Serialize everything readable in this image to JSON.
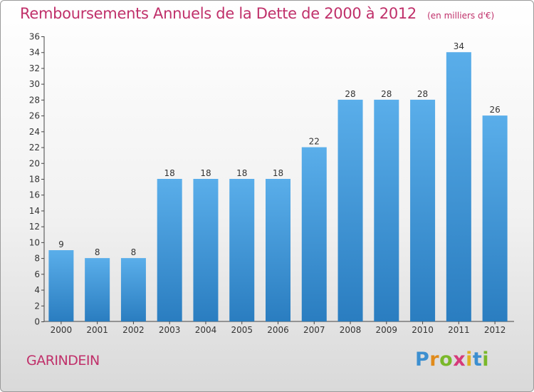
{
  "chart_data": {
    "type": "bar",
    "title": "Remboursements Annuels de la Dette de 2000 à 2012",
    "unit_label": "(en milliers d'€)",
    "categories": [
      "2000",
      "2001",
      "2002",
      "2003",
      "2004",
      "2005",
      "2006",
      "2007",
      "2008",
      "2009",
      "2010",
      "2011",
      "2012"
    ],
    "values": [
      9,
      8,
      8,
      18,
      18,
      18,
      18,
      22,
      28,
      28,
      28,
      34,
      26
    ],
    "ylim": [
      0,
      36
    ],
    "yticks": [
      0,
      2,
      4,
      6,
      8,
      10,
      12,
      14,
      16,
      18,
      20,
      22,
      24,
      26,
      28,
      30,
      32,
      34,
      36
    ],
    "grid": false,
    "bar_color_top": "#5aaeea",
    "bar_color_bottom": "#2a7dc0"
  },
  "footer": {
    "commune": "GARINDEIN"
  },
  "logo": {
    "letters": [
      "P",
      "r",
      "o",
      "x",
      "i",
      "t",
      "i"
    ],
    "colors": [
      "#3c8fd0",
      "#e08a1a",
      "#7ab82a",
      "#d63a7a",
      "#e0b020",
      "#3c8fd0",
      "#7ab82a"
    ]
  },
  "colors": {
    "title": "#c0306a",
    "axis": "#444444"
  }
}
